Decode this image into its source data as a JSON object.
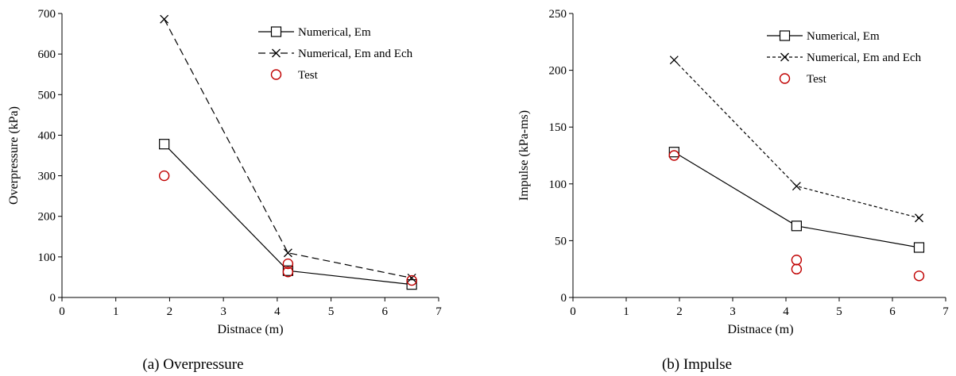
{
  "chart_data": [
    {
      "type": "scatter",
      "caption": "(a) Overpressure",
      "xlabel": "Distnace (m)",
      "ylabel": "Overpressure (kPa)",
      "xlim": [
        0,
        7
      ],
      "ylim": [
        0,
        700
      ],
      "xticks": [
        "0",
        "1",
        "2",
        "3",
        "4",
        "5",
        "6",
        "7"
      ],
      "yticks": [
        "0",
        "100",
        "200",
        "300",
        "400",
        "500",
        "600",
        "700"
      ],
      "grid": false,
      "legend_position": "top-right",
      "series": [
        {
          "name": "Numerical, Em",
          "style": "solid-square",
          "color": "#000000",
          "points": [
            [
              1.9,
              378
            ],
            [
              4.2,
              66
            ],
            [
              6.5,
              32
            ]
          ]
        },
        {
          "name": "Numerical, Em and Ech",
          "style": "dashed-x",
          "color": "#000000",
          "points": [
            [
              1.9,
              686
            ],
            [
              4.2,
              110
            ],
            [
              6.5,
              48
            ]
          ]
        },
        {
          "name": "Test",
          "style": "circle",
          "color": "#c00000",
          "points": [
            [
              1.9,
              300
            ],
            [
              4.2,
              83
            ],
            [
              4.2,
              63
            ],
            [
              6.5,
              42
            ]
          ]
        }
      ]
    },
    {
      "type": "scatter",
      "caption": "(b) Impulse",
      "xlabel": "Distnace (m)",
      "ylabel": "Impulse (kPa-ms)",
      "xlim": [
        0,
        7
      ],
      "ylim": [
        0,
        250
      ],
      "xticks": [
        "0",
        "1",
        "2",
        "3",
        "4",
        "5",
        "6",
        "7"
      ],
      "yticks": [
        "0",
        "50",
        "100",
        "150",
        "200",
        "250"
      ],
      "grid": false,
      "legend_position": "top-right",
      "series": [
        {
          "name": "Numerical, Em",
          "style": "solid-square",
          "color": "#000000",
          "points": [
            [
              1.9,
              128
            ],
            [
              4.2,
              63
            ],
            [
              6.5,
              44
            ]
          ]
        },
        {
          "name": "Numerical, Em and Ech",
          "style": "dotted-x",
          "color": "#000000",
          "points": [
            [
              1.9,
              209
            ],
            [
              4.2,
              98
            ],
            [
              6.5,
              70
            ]
          ]
        },
        {
          "name": "Test",
          "style": "circle",
          "color": "#c00000",
          "points": [
            [
              1.9,
              125
            ],
            [
              4.2,
              33
            ],
            [
              4.2,
              25
            ],
            [
              6.5,
              19
            ]
          ]
        }
      ]
    }
  ]
}
